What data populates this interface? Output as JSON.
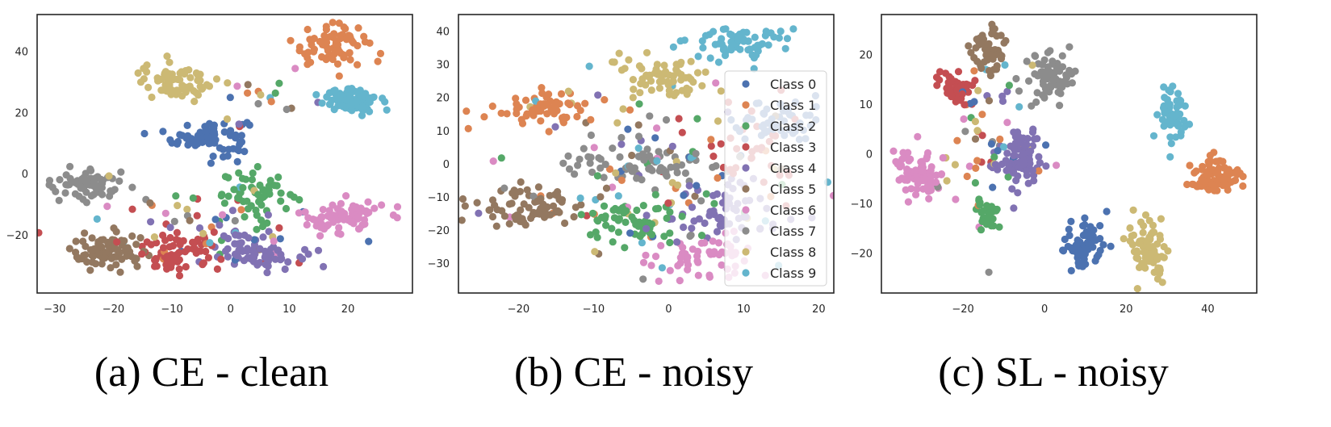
{
  "palette": [
    "#4c72b0",
    "#dd8452",
    "#55a868",
    "#c44e52",
    "#8172b3",
    "#937860",
    "#da8bc3",
    "#8c8c8c",
    "#ccb974",
    "#64b5cd"
  ],
  "chart_data": [
    {
      "type": "scatter",
      "caption": "(a) CE - clean",
      "title": "",
      "xlabel": "",
      "ylabel": "",
      "xlim": [
        -33,
        31
      ],
      "ylim": [
        -39,
        52
      ],
      "xticks": [
        -30,
        -20,
        -10,
        0,
        10,
        20
      ],
      "yticks": [
        40,
        20,
        0,
        -20
      ],
      "grid": false,
      "clusters": [
        {
          "class": 0,
          "x": -3.5,
          "y": 12,
          "sx": 3.2,
          "sy": 3.0,
          "n": 80
        },
        {
          "class": 1,
          "x": 17,
          "y": 42,
          "sx": 3.3,
          "sy": 3.3,
          "n": 75
        },
        {
          "class": 2,
          "x": 5,
          "y": -7,
          "sx": 3.2,
          "sy": 4.0,
          "n": 55
        },
        {
          "class": 3,
          "x": -9,
          "y": -26,
          "sx": 3.6,
          "sy": 3.2,
          "n": 70
        },
        {
          "class": 4,
          "x": 5,
          "y": -25,
          "sx": 3.6,
          "sy": 3.0,
          "n": 70
        },
        {
          "class": 5,
          "x": -21,
          "y": -26,
          "sx": 3.3,
          "sy": 3.2,
          "n": 75
        },
        {
          "class": 6,
          "x": 19,
          "y": -14,
          "sx": 3.5,
          "sy": 2.8,
          "n": 75
        },
        {
          "class": 7,
          "x": -25,
          "y": -3,
          "sx": 3.6,
          "sy": 2.6,
          "n": 70
        },
        {
          "class": 8,
          "x": -9,
          "y": 30,
          "sx": 3.2,
          "sy": 3.0,
          "n": 75
        },
        {
          "class": 9,
          "x": 21,
          "y": 24,
          "sx": 3.0,
          "sy": 2.4,
          "n": 75
        }
      ],
      "scattered": [
        {
          "x": -5,
          "y": -16,
          "sx": 9,
          "sy": 7,
          "n": 60
        },
        {
          "x": 7,
          "y": 23,
          "sx": 5,
          "sy": 6,
          "n": 18
        }
      ]
    },
    {
      "type": "scatter",
      "caption": "(b) CE - noisy",
      "title": "",
      "xlabel": "",
      "ylabel": "",
      "xlim": [
        -28,
        22
      ],
      "ylim": [
        -39,
        45
      ],
      "xticks": [
        -20,
        -10,
        0,
        10,
        20
      ],
      "yticks": [
        40,
        30,
        20,
        10,
        0,
        -10,
        -20,
        -30
      ],
      "grid": false,
      "legend": {
        "position": "right",
        "entries": [
          "Class 0",
          "Class 1",
          "Class 2",
          "Class 3",
          "Class 4",
          "Class 5",
          "Class 6",
          "Class 7",
          "Class 8",
          "Class 9"
        ]
      },
      "clusters": [
        {
          "class": 0,
          "x": 15,
          "y": 13,
          "sx": 3.0,
          "sy": 3.5,
          "n": 50
        },
        {
          "class": 1,
          "x": -17,
          "y": 17,
          "sx": 3.0,
          "sy": 2.8,
          "n": 65
        },
        {
          "class": 2,
          "x": -5,
          "y": -18,
          "sx": 3.0,
          "sy": 3.5,
          "n": 60
        },
        {
          "class": 3,
          "x": 10,
          "y": 6,
          "sx": 4.0,
          "sy": 6.0,
          "n": 30
        },
        {
          "class": 4,
          "x": 7,
          "y": -15,
          "sx": 4.5,
          "sy": 5.5,
          "n": 60
        },
        {
          "class": 5,
          "x": -19,
          "y": -13,
          "sx": 4.0,
          "sy": 3.0,
          "n": 75
        },
        {
          "class": 6,
          "x": 5,
          "y": -28,
          "sx": 4.0,
          "sy": 3.0,
          "n": 55
        },
        {
          "class": 7,
          "x": -4,
          "y": 0,
          "sx": 5.0,
          "sy": 2.5,
          "n": 70
        },
        {
          "class": 8,
          "x": -2,
          "y": 26,
          "sx": 3.5,
          "sy": 3.0,
          "n": 65
        },
        {
          "class": 9,
          "x": 9,
          "y": 36,
          "sx": 3.5,
          "sy": 2.5,
          "n": 65
        }
      ],
      "scattered": [
        {
          "x": -2,
          "y": -3,
          "sx": 10,
          "sy": 14,
          "n": 120
        }
      ]
    },
    {
      "type": "scatter",
      "caption": "(c) SL - noisy",
      "title": "",
      "xlabel": "",
      "ylabel": "",
      "xlim": [
        -40,
        52
      ],
      "ylim": [
        -28,
        28
      ],
      "xticks": [
        -20,
        0,
        20,
        40
      ],
      "yticks": [
        20,
        10,
        0,
        -10,
        -20
      ],
      "grid": false,
      "clusters": [
        {
          "class": 0,
          "x": 10,
          "y": -18,
          "sx": 2.8,
          "sy": 2.5,
          "n": 75
        },
        {
          "class": 1,
          "x": 42,
          "y": -5,
          "sx": 3.0,
          "sy": 2.0,
          "n": 75
        },
        {
          "class": 2,
          "x": -14,
          "y": -12,
          "sx": 1.5,
          "sy": 1.5,
          "n": 30
        },
        {
          "class": 3,
          "x": -22,
          "y": 13,
          "sx": 2.5,
          "sy": 1.8,
          "n": 45
        },
        {
          "class": 4,
          "x": -5,
          "y": -1,
          "sx": 2.5,
          "sy": 3.0,
          "n": 75
        },
        {
          "class": 5,
          "x": -14,
          "y": 21,
          "sx": 2.0,
          "sy": 2.5,
          "n": 50
        },
        {
          "class": 6,
          "x": -31,
          "y": -4,
          "sx": 2.8,
          "sy": 2.3,
          "n": 80
        },
        {
          "class": 7,
          "x": 1,
          "y": 15,
          "sx": 2.8,
          "sy": 2.8,
          "n": 75
        },
        {
          "class": 8,
          "x": 25,
          "y": -19,
          "sx": 2.5,
          "sy": 3.0,
          "n": 75
        },
        {
          "class": 9,
          "x": 31,
          "y": 8,
          "sx": 1.8,
          "sy": 2.5,
          "n": 55
        }
      ],
      "scattered": [
        {
          "x": -14,
          "y": 3,
          "sx": 6,
          "sy": 8,
          "n": 70
        }
      ]
    }
  ]
}
